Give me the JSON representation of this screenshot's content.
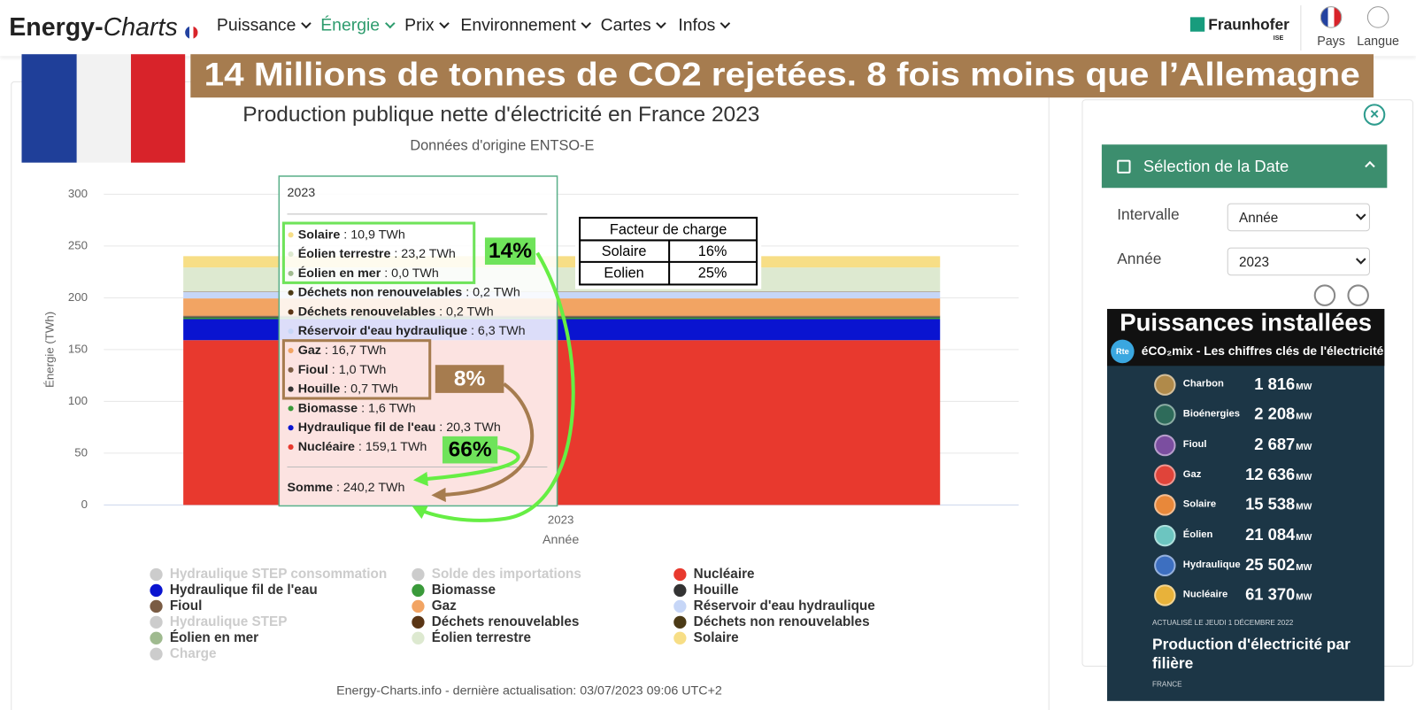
{
  "header": {
    "logo": [
      "Energy-",
      "Charts"
    ],
    "menu": [
      "Puissance",
      "Énergie",
      "Prix",
      "Environnement",
      "Cartes",
      "Infos"
    ],
    "active_menu": "Énergie",
    "brand": "Fraunhofer",
    "brand_sub": "ISE",
    "buttons": [
      "Pays",
      "Langue"
    ]
  },
  "banner": "14 Millions de tonnes de CO2 rejetées. 8 fois moins que l’Allemagne",
  "chart_data": {
    "type": "bar",
    "stacked": true,
    "title": "Production publique nette d'électricité en France 2023",
    "subtitle": "Données d'origine ENTSO-E",
    "x_label": "Année",
    "y_label": "Énergie (TWh)",
    "categories": [
      "2023"
    ],
    "ylim": [
      0,
      300
    ],
    "yticks": [
      0,
      50,
      100,
      150,
      200,
      250,
      300
    ],
    "grid": true,
    "series": [
      {
        "name": "Solaire",
        "color": "#f7de86",
        "values": [
          10.9
        ],
        "value_labels": [
          "10,9 TWh"
        ]
      },
      {
        "name": "Éolien terrestre",
        "color": "#dde9d0",
        "values": [
          23.2
        ],
        "value_labels": [
          "23,2 TWh"
        ]
      },
      {
        "name": "Éolien en mer",
        "color": "#9fba8f",
        "values": [
          0.0
        ],
        "value_labels": [
          "0,0 TWh"
        ]
      },
      {
        "name": "Déchets non renouvelables",
        "color": "#4b3a16",
        "values": [
          0.2
        ],
        "value_labels": [
          "0,2 TWh"
        ]
      },
      {
        "name": "Déchets renouvelables",
        "color": "#5a3515",
        "values": [
          0.2
        ],
        "value_labels": [
          "0,2 TWh"
        ]
      },
      {
        "name": "Réservoir d'eau hydraulique",
        "color": "#c6d6f7",
        "values": [
          6.3
        ],
        "value_labels": [
          "6,3 TWh"
        ]
      },
      {
        "name": "Gaz",
        "color": "#f2a463",
        "values": [
          16.7
        ],
        "value_labels": [
          "16,7 TWh"
        ]
      },
      {
        "name": "Fioul",
        "color": "#7a5c44",
        "values": [
          1.0
        ],
        "value_labels": [
          "1,0 TWh"
        ]
      },
      {
        "name": "Houille",
        "color": "#333333",
        "values": [
          0.7
        ],
        "value_labels": [
          "0,7 TWh"
        ]
      },
      {
        "name": "Biomasse",
        "color": "#3a9a3a",
        "values": [
          1.6
        ],
        "value_labels": [
          "1,6 TWh"
        ]
      },
      {
        "name": "Hydraulique fil de l'eau",
        "color": "#0a14d0",
        "values": [
          20.3
        ],
        "value_labels": [
          "20,3 TWh"
        ]
      },
      {
        "name": "Nucléaire",
        "color": "#e8392e",
        "values": [
          159.1
        ],
        "value_labels": [
          "159,1 TWh"
        ]
      }
    ],
    "hidden_series": [
      "Hydraulique STEP consommation",
      "Solde des importations",
      "Hydraulique STEP",
      "Charge"
    ],
    "tooltip": {
      "separator": " : ",
      "total_label": "Somme",
      "total_value_label": "240,2 TWh"
    },
    "annotations": [
      "14%",
      "8%",
      "66%"
    ],
    "load_factor": {
      "title": "Facteur de charge",
      "rows": [
        [
          "Solaire",
          "16%"
        ],
        [
          "Eolien",
          "25%"
        ]
      ]
    },
    "credit": "Energy-Charts.info - dernière actualisation: 03/07/2023 09:06 UTC+2"
  },
  "date_panel": {
    "title": "Sélection de la Date",
    "fields": [
      {
        "label": "Intervalle",
        "value": "Année"
      },
      {
        "label": "Année",
        "value": "2023"
      }
    ]
  },
  "eco2mix": {
    "title": "Puissances installées",
    "logo": "Rte",
    "subtitle": "éCO₂mix - Les chiffres clés de l'électricité",
    "unit": "MW",
    "rows": [
      {
        "name": "Charbon",
        "value": "1 816",
        "color": "#b08a4a"
      },
      {
        "name": "Bioénergies",
        "value": "2 208",
        "color": "#2e6b5a"
      },
      {
        "name": "Fioul",
        "value": "2 687",
        "color": "#7b4ea0"
      },
      {
        "name": "Gaz",
        "value": "12 636",
        "color": "#e0443a"
      },
      {
        "name": "Solaire",
        "value": "15 538",
        "color": "#e8883a"
      },
      {
        "name": "Éolien",
        "value": "21 084",
        "color": "#6cc5c0"
      },
      {
        "name": "Hydraulique",
        "value": "25 502",
        "color": "#3d6fc0"
      },
      {
        "name": "Nucléaire",
        "value": "61 370",
        "color": "#e8b23a"
      }
    ],
    "updated": "ACTUALISÉ LE JEUDI 1 DÉCEMBRE 2022",
    "caption": "Production d'électricité par filière",
    "region": "FRANCE"
  }
}
